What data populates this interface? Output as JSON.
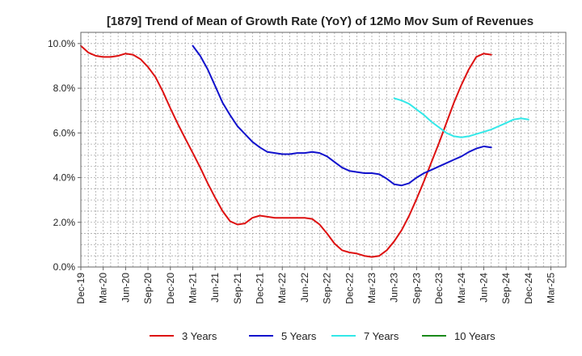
{
  "chart_data": {
    "type": "line",
    "title": "[1879]  Trend of Mean of Growth Rate (YoY) of 12Mo Mov Sum of Revenues",
    "xlabel": "",
    "ylabel": "",
    "ylim": [
      0,
      10.5
    ],
    "yticks": [
      0,
      2,
      4,
      6,
      8,
      10
    ],
    "ytick_labels": [
      "0.0%",
      "2.0%",
      "4.0%",
      "6.0%",
      "8.0%",
      "10.0%"
    ],
    "x_count": 66,
    "xtick_labels": [
      "Dec-19",
      "Mar-20",
      "Jun-20",
      "Sep-20",
      "Dec-20",
      "Mar-21",
      "Jun-21",
      "Sep-21",
      "Dec-21",
      "Mar-22",
      "Jun-22",
      "Sep-22",
      "Dec-22",
      "Mar-23",
      "Jun-23",
      "Sep-23",
      "Dec-23",
      "Mar-24",
      "Jun-24",
      "Sep-24",
      "Dec-24",
      "Mar-25"
    ],
    "grid": true,
    "legend_position": "bottom",
    "series": [
      {
        "name": "3 Years",
        "color": "#dd1111",
        "start_index": 0,
        "values": [
          9.9,
          9.6,
          9.45,
          9.4,
          9.4,
          9.45,
          9.55,
          9.5,
          9.3,
          8.95,
          8.5,
          7.85,
          7.1,
          6.4,
          5.75,
          5.1,
          4.45,
          3.75,
          3.1,
          2.5,
          2.05,
          1.9,
          1.95,
          2.2,
          2.3,
          2.25,
          2.2,
          2.2,
          2.2,
          2.2,
          2.2,
          2.15,
          1.9,
          1.5,
          1.05,
          0.75,
          0.65,
          0.6,
          0.5,
          0.45,
          0.5,
          0.75,
          1.15,
          1.65,
          2.3,
          3.05,
          3.85,
          4.7,
          5.55,
          6.45,
          7.35,
          8.15,
          8.85,
          9.4,
          9.55,
          9.5
        ]
      },
      {
        "name": "5 Years",
        "color": "#1111cc",
        "start_index": 15,
        "values": [
          9.9,
          9.45,
          8.85,
          8.1,
          7.35,
          6.8,
          6.3,
          5.95,
          5.6,
          5.35,
          5.15,
          5.1,
          5.05,
          5.05,
          5.1,
          5.1,
          5.15,
          5.1,
          4.95,
          4.7,
          4.45,
          4.3,
          4.25,
          4.2,
          4.2,
          4.15,
          3.95,
          3.7,
          3.65,
          3.75,
          4.0,
          4.2,
          4.35,
          4.5,
          4.65,
          4.8,
          4.95,
          5.15,
          5.3,
          5.4,
          5.35
        ]
      },
      {
        "name": "7 Years",
        "color": "#33e8e8",
        "start_index": 42,
        "values": [
          7.55,
          7.45,
          7.3,
          7.05,
          6.8,
          6.5,
          6.25,
          6.0,
          5.85,
          5.8,
          5.85,
          5.95,
          6.05,
          6.15,
          6.3,
          6.45,
          6.6,
          6.65,
          6.6
        ]
      },
      {
        "name": "10 Years",
        "color": "#1a8a1a",
        "start_index": 0,
        "values": []
      }
    ]
  }
}
